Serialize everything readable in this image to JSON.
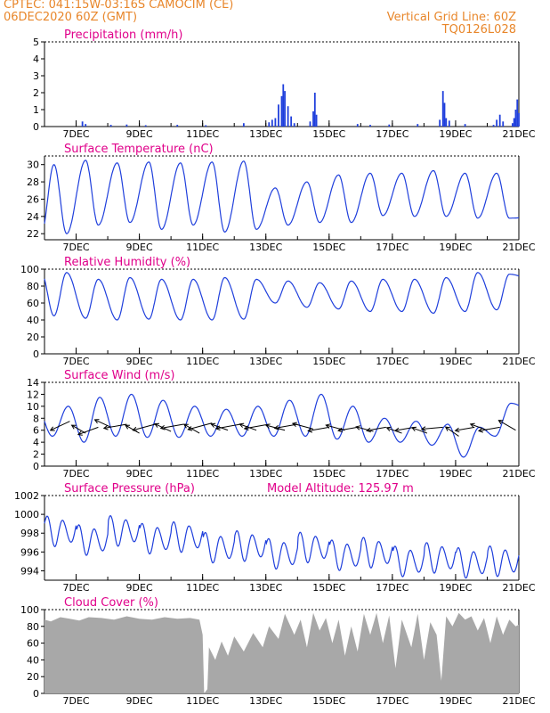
{
  "header": {
    "line1_left": "CPTEC:    041:15W-03:16S   CAMOCIM (CE)",
    "line2_left": "06DEC2020 60Z (GMT)",
    "line1_right": "Vertical Grid Line: 60Z",
    "line2_right": "TQ0126L028"
  },
  "colors": {
    "header": "#e8862a",
    "title": "#e0008a",
    "series": "#1f3fdc",
    "cloud": "#a8a8a8",
    "arrow": "#000000"
  },
  "x_axis": {
    "start_day": 6,
    "end_day": 21,
    "tick_days": [
      7,
      9,
      11,
      13,
      15,
      17,
      19,
      21
    ],
    "tick_labels": [
      "7DEC",
      "9DEC",
      "11DEC",
      "13DEC",
      "15DEC",
      "17DEC",
      "19DEC",
      "21DEC"
    ]
  },
  "chart_data": [
    {
      "id": "precip",
      "type": "bar",
      "title": "Precipitation (mm/h)",
      "ylim": [
        0,
        5
      ],
      "yticks": [
        0,
        1,
        2,
        3,
        4,
        5
      ],
      "bars": [
        {
          "day": 7.2,
          "v": 0.3
        },
        {
          "day": 7.3,
          "v": 0.15
        },
        {
          "day": 8.1,
          "v": 0.1
        },
        {
          "day": 8.6,
          "v": 0.12
        },
        {
          "day": 9.2,
          "v": 0.08
        },
        {
          "day": 10.2,
          "v": 0.1
        },
        {
          "day": 11.1,
          "v": 0.08
        },
        {
          "day": 12.3,
          "v": 0.2
        },
        {
          "day": 13.1,
          "v": 0.25
        },
        {
          "day": 13.2,
          "v": 0.4
        },
        {
          "day": 13.3,
          "v": 0.5
        },
        {
          "day": 13.4,
          "v": 1.3
        },
        {
          "day": 13.5,
          "v": 1.8
        },
        {
          "day": 13.55,
          "v": 2.5
        },
        {
          "day": 13.6,
          "v": 2.1
        },
        {
          "day": 13.7,
          "v": 1.2
        },
        {
          "day": 13.8,
          "v": 0.6
        },
        {
          "day": 13.9,
          "v": 0.2
        },
        {
          "day": 14.4,
          "v": 0.3
        },
        {
          "day": 14.5,
          "v": 0.9
        },
        {
          "day": 14.55,
          "v": 2.0
        },
        {
          "day": 14.6,
          "v": 0.7
        },
        {
          "day": 15.9,
          "v": 0.15
        },
        {
          "day": 16.3,
          "v": 0.1
        },
        {
          "day": 16.9,
          "v": 0.12
        },
        {
          "day": 17.8,
          "v": 0.15
        },
        {
          "day": 18.5,
          "v": 0.4
        },
        {
          "day": 18.6,
          "v": 2.1
        },
        {
          "day": 18.65,
          "v": 1.4
        },
        {
          "day": 18.7,
          "v": 0.5
        },
        {
          "day": 18.8,
          "v": 0.35
        },
        {
          "day": 19.3,
          "v": 0.15
        },
        {
          "day": 20.2,
          "v": 0.1
        },
        {
          "day": 20.3,
          "v": 0.4
        },
        {
          "day": 20.4,
          "v": 0.7
        },
        {
          "day": 20.5,
          "v": 0.3
        },
        {
          "day": 20.8,
          "v": 0.2
        },
        {
          "day": 20.85,
          "v": 0.5
        },
        {
          "day": 20.9,
          "v": 1.0
        },
        {
          "day": 20.95,
          "v": 1.6
        },
        {
          "day": 21.0,
          "v": 0.8
        }
      ]
    },
    {
      "id": "temp",
      "type": "line",
      "title": "Surface Temperature (nC)",
      "ylim": [
        21.3,
        31
      ],
      "yticks": [
        22,
        24,
        26,
        28,
        30
      ],
      "daily": {
        "min": [
          22.0,
          23.0,
          23.3,
          22.5,
          23.0,
          22.2,
          22.5,
          23.0,
          23.3,
          23.3,
          24.1,
          24.0,
          24.0,
          23.8,
          23.8,
          24.0
        ],
        "max": [
          30.0,
          30.5,
          30.2,
          30.3,
          30.2,
          30.3,
          30.4,
          27.3,
          28.0,
          28.8,
          29.0,
          29.0,
          29.3,
          29.0,
          29.0
        ],
        "max_phase": 0.3,
        "min_phase": 0.7
      }
    },
    {
      "id": "rh",
      "type": "line",
      "title": "Relative Humidity (%)",
      "ylim": [
        0,
        100
      ],
      "yticks": [
        0,
        20,
        40,
        60,
        80,
        100
      ],
      "daily": {
        "min": [
          45,
          42,
          40,
          41,
          40,
          40,
          41,
          60,
          55,
          53,
          50,
          50,
          48,
          50,
          52
        ],
        "max": [
          96,
          88,
          90,
          88,
          88,
          90,
          88,
          86,
          84,
          86,
          88,
          88,
          90,
          96,
          94,
          84
        ],
        "max_phase": 0.7,
        "min_phase": 0.3
      }
    },
    {
      "id": "wind",
      "type": "line",
      "title": "Surface Wind (m/s)",
      "ylim": [
        0,
        14
      ],
      "yticks": [
        0,
        2,
        4,
        6,
        8,
        10,
        12,
        14
      ],
      "daily": {
        "min": [
          5.0,
          4.0,
          5.0,
          4.8,
          4.8,
          5.0,
          5.0,
          5.0,
          5.0,
          4.5,
          4.0,
          4.0,
          3.5,
          1.5,
          5.0
        ],
        "max": [
          10.0,
          11.5,
          12.0,
          11.0,
          10.0,
          9.5,
          10.0,
          11.0,
          12.0,
          10.0,
          8.0,
          7.5,
          7.0,
          6.5,
          10.5,
          8.0
        ],
        "max_phase": 0.75,
        "min_phase": 0.25
      },
      "vectors": [
        {
          "day": 6.8,
          "v": 7.5,
          "ang": 205,
          "len": 24
        },
        {
          "day": 7.3,
          "v": 5.5,
          "ang": 150,
          "len": 18
        },
        {
          "day": 7.7,
          "v": 6.5,
          "ang": 200,
          "len": 24
        },
        {
          "day": 8.1,
          "v": 6.5,
          "ang": 155,
          "len": 20
        },
        {
          "day": 8.6,
          "v": 7.0,
          "ang": 190,
          "len": 26
        },
        {
          "day": 9.0,
          "v": 5.5,
          "ang": 150,
          "len": 18
        },
        {
          "day": 9.5,
          "v": 7.0,
          "ang": 195,
          "len": 26
        },
        {
          "day": 10.0,
          "v": 5.8,
          "ang": 155,
          "len": 20
        },
        {
          "day": 10.4,
          "v": 7.0,
          "ang": 190,
          "len": 26
        },
        {
          "day": 10.9,
          "v": 5.5,
          "ang": 150,
          "len": 20
        },
        {
          "day": 11.3,
          "v": 7.2,
          "ang": 195,
          "len": 28
        },
        {
          "day": 11.8,
          "v": 6.0,
          "ang": 160,
          "len": 20
        },
        {
          "day": 12.2,
          "v": 7.0,
          "ang": 190,
          "len": 28
        },
        {
          "day": 12.7,
          "v": 6.0,
          "ang": 160,
          "len": 20
        },
        {
          "day": 13.1,
          "v": 7.0,
          "ang": 190,
          "len": 28
        },
        {
          "day": 13.6,
          "v": 6.0,
          "ang": 165,
          "len": 22
        },
        {
          "day": 14.0,
          "v": 7.0,
          "ang": 190,
          "len": 26
        },
        {
          "day": 14.5,
          "v": 6.2,
          "ang": 165,
          "len": 24
        },
        {
          "day": 15.0,
          "v": 6.5,
          "ang": 190,
          "len": 24
        },
        {
          "day": 15.5,
          "v": 6.0,
          "ang": 165,
          "len": 22
        },
        {
          "day": 15.9,
          "v": 6.5,
          "ang": 190,
          "len": 22
        },
        {
          "day": 16.4,
          "v": 5.8,
          "ang": 165,
          "len": 20
        },
        {
          "day": 16.8,
          "v": 6.5,
          "ang": 190,
          "len": 22
        },
        {
          "day": 17.3,
          "v": 5.5,
          "ang": 160,
          "len": 18
        },
        {
          "day": 17.7,
          "v": 6.5,
          "ang": 190,
          "len": 22
        },
        {
          "day": 18.1,
          "v": 5.5,
          "ang": 160,
          "len": 18
        },
        {
          "day": 18.6,
          "v": 6.5,
          "ang": 185,
          "len": 24
        },
        {
          "day": 19.1,
          "v": 5.0,
          "ang": 145,
          "len": 18
        },
        {
          "day": 19.6,
          "v": 6.5,
          "ang": 190,
          "len": 22
        },
        {
          "day": 20.0,
          "v": 6.0,
          "ang": 160,
          "len": 20
        },
        {
          "day": 20.4,
          "v": 6.5,
          "ang": 190,
          "len": 24
        },
        {
          "day": 20.9,
          "v": 6.0,
          "ang": 150,
          "len": 22
        }
      ]
    },
    {
      "id": "pres",
      "type": "line",
      "title": "Surface Pressure (hPa)",
      "subtitle": "Model Altitude: 125.97 m",
      "ylim": [
        993,
        1002
      ],
      "yticks": [
        994,
        996,
        998,
        1000,
        1002
      ],
      "semidiurnal": {
        "trend_start": 998.0,
        "trend_end": 994.6,
        "amplitude": 1.7,
        "wiggle": [
          0.3,
          -0.4,
          0.8,
          0.2,
          0.6,
          -0.3,
          0.1,
          -0.5,
          0.4,
          -0.2,
          0.3,
          -0.4,
          0.2,
          -0.1,
          0.3
        ]
      }
    },
    {
      "id": "cloud",
      "type": "area",
      "title": "Cloud Cover (%)",
      "ylim": [
        0,
        100
      ],
      "yticks": [
        0,
        20,
        40,
        60,
        80,
        100
      ],
      "points": [
        [
          6.0,
          88
        ],
        [
          6.2,
          86
        ],
        [
          6.5,
          91
        ],
        [
          6.8,
          89
        ],
        [
          7.1,
          87
        ],
        [
          7.4,
          91
        ],
        [
          7.8,
          90
        ],
        [
          8.2,
          88
        ],
        [
          8.6,
          92
        ],
        [
          9.0,
          89
        ],
        [
          9.4,
          88
        ],
        [
          9.8,
          91
        ],
        [
          10.2,
          89
        ],
        [
          10.6,
          90
        ],
        [
          10.9,
          88
        ],
        [
          11.0,
          70
        ],
        [
          11.05,
          0
        ],
        [
          11.15,
          5
        ],
        [
          11.2,
          55
        ],
        [
          11.4,
          40
        ],
        [
          11.6,
          62
        ],
        [
          11.8,
          45
        ],
        [
          12.0,
          68
        ],
        [
          12.3,
          50
        ],
        [
          12.6,
          72
        ],
        [
          12.9,
          55
        ],
        [
          13.1,
          80
        ],
        [
          13.4,
          65
        ],
        [
          13.6,
          95
        ],
        [
          13.9,
          70
        ],
        [
          14.1,
          88
        ],
        [
          14.3,
          55
        ],
        [
          14.5,
          96
        ],
        [
          14.7,
          75
        ],
        [
          14.9,
          90
        ],
        [
          15.1,
          60
        ],
        [
          15.3,
          88
        ],
        [
          15.5,
          45
        ],
        [
          15.7,
          80
        ],
        [
          15.9,
          50
        ],
        [
          16.1,
          95
        ],
        [
          16.3,
          70
        ],
        [
          16.5,
          96
        ],
        [
          16.7,
          60
        ],
        [
          16.9,
          93
        ],
        [
          17.1,
          30
        ],
        [
          17.3,
          88
        ],
        [
          17.6,
          55
        ],
        [
          17.8,
          95
        ],
        [
          18.0,
          40
        ],
        [
          18.2,
          85
        ],
        [
          18.4,
          70
        ],
        [
          18.55,
          15
        ],
        [
          18.7,
          92
        ],
        [
          18.9,
          80
        ],
        [
          19.1,
          96
        ],
        [
          19.3,
          88
        ],
        [
          19.5,
          92
        ],
        [
          19.7,
          75
        ],
        [
          19.9,
          90
        ],
        [
          20.1,
          60
        ],
        [
          20.3,
          92
        ],
        [
          20.5,
          70
        ],
        [
          20.7,
          88
        ],
        [
          20.9,
          80
        ],
        [
          21.0,
          82
        ]
      ]
    }
  ]
}
